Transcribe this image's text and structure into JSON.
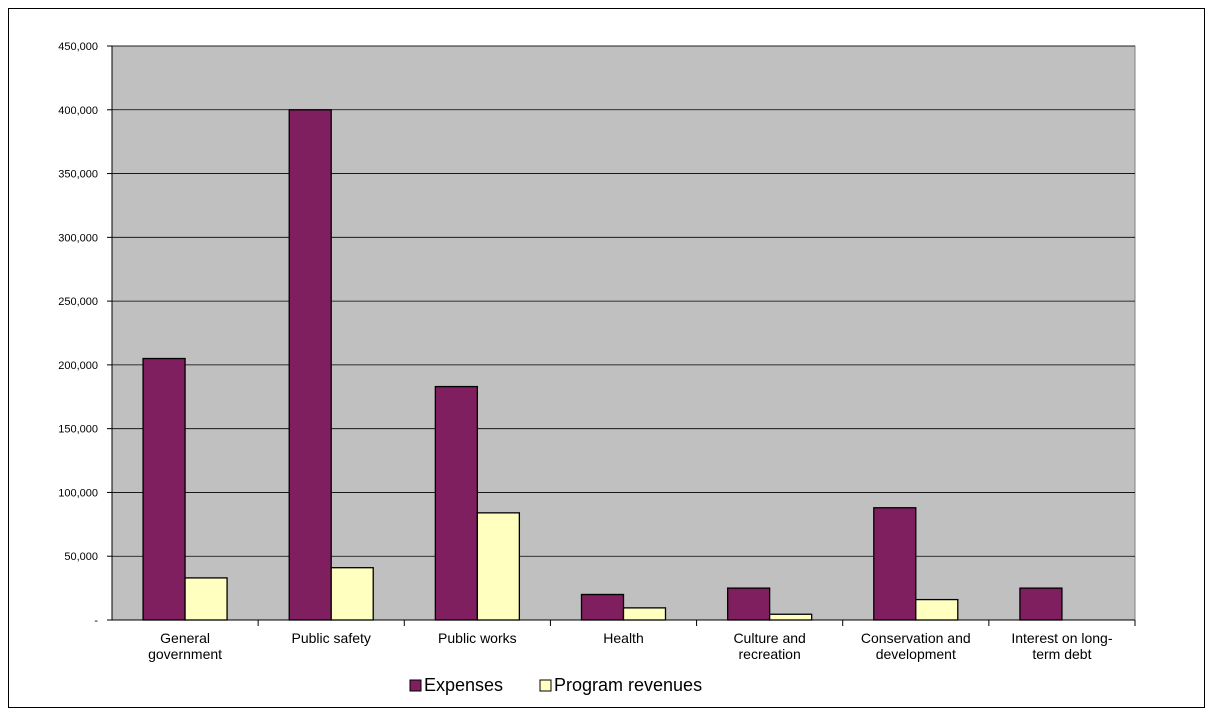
{
  "chart_data": {
    "type": "bar",
    "title": "",
    "xlabel": "",
    "ylabel": "",
    "ylim": [
      0,
      450000
    ],
    "y_ticks": [
      0,
      50000,
      100000,
      150000,
      200000,
      250000,
      300000,
      350000,
      400000,
      450000
    ],
    "y_tick_labels": [
      "-",
      "50,000",
      "100,000",
      "150,000",
      "200,000",
      "250,000",
      "300,000",
      "350,000",
      "400,000",
      "450,000"
    ],
    "grid": true,
    "legend_position": "bottom",
    "categories": [
      [
        "General",
        "government"
      ],
      [
        "Public safety"
      ],
      [
        "Public works"
      ],
      [
        "Health"
      ],
      [
        "Culture and",
        "recreation"
      ],
      [
        "Conservation and",
        "development"
      ],
      [
        "Interest on long-",
        "term debt"
      ]
    ],
    "series": [
      {
        "name": "Expenses",
        "color": "#7f1f5f",
        "values": [
          205000,
          400000,
          183000,
          20000,
          25000,
          88000,
          25000
        ]
      },
      {
        "name": "Program revenues",
        "color": "#ffffc0",
        "values": [
          33000,
          41000,
          84000,
          9500,
          4500,
          16000,
          0
        ]
      }
    ],
    "plot_background": "#c0c0c0"
  }
}
